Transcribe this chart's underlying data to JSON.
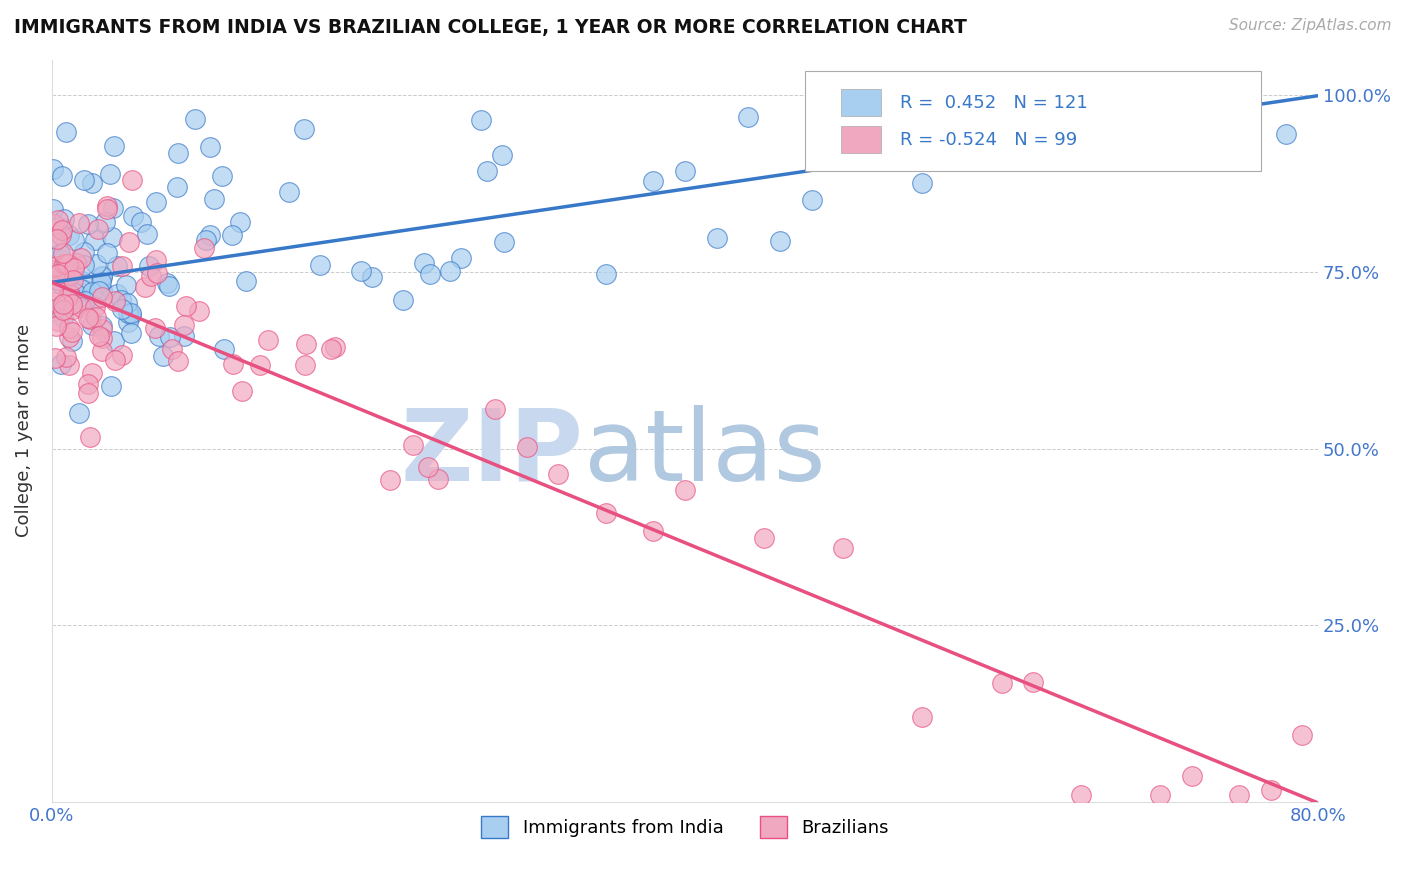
{
  "title": "IMMIGRANTS FROM INDIA VS BRAZILIAN COLLEGE, 1 YEAR OR MORE CORRELATION CHART",
  "source_text": "Source: ZipAtlas.com",
  "ylabel": "College, 1 year or more",
  "xlim": [
    0.0,
    0.8
  ],
  "ylim": [
    0.0,
    1.05
  ],
  "r_india": 0.452,
  "n_india": 121,
  "r_brazil": -0.524,
  "n_brazil": 99,
  "india_color": "#a8cef0",
  "brazil_color": "#f0a8c0",
  "india_line_color": "#3878c8",
  "brazil_line_color": "#e85080",
  "title_color": "#111111",
  "axis_tick_color": "#4477cc",
  "watermark_zip_color": "#d0dff0",
  "watermark_atlas_color": "#b8d0e8",
  "legend_r_color": "#3878c8",
  "india_line_intercept": 0.735,
  "india_line_slope": 0.33,
  "brazil_line_intercept": 0.735,
  "brazil_line_slope": -0.92
}
